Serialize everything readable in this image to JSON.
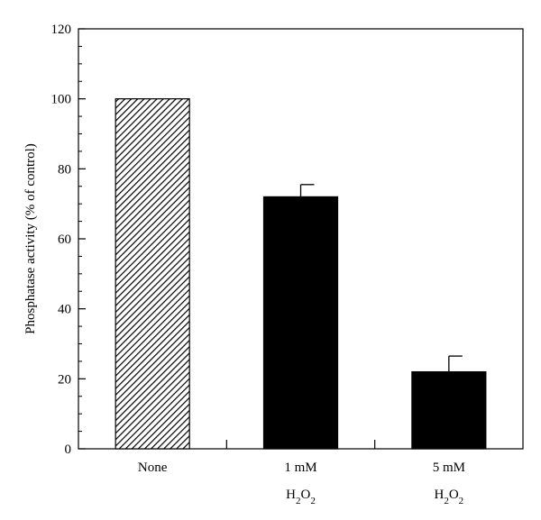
{
  "chart_data": {
    "type": "bar",
    "title": "",
    "xlabel": "",
    "ylabel": "Phosphatase activity (% of control)",
    "ylim": [
      0,
      120
    ],
    "yticks": [
      0,
      20,
      40,
      60,
      80,
      100,
      120
    ],
    "grid": false,
    "legend": "none",
    "categories": [
      {
        "line1": "None",
        "line2": ""
      },
      {
        "line1": "1 mM",
        "line2": "H2O2"
      },
      {
        "line1": "5 mM",
        "line2": "H2O2"
      }
    ],
    "values": [
      100,
      72,
      22
    ],
    "errors": [
      0,
      3.5,
      4.5
    ],
    "bar_styles": [
      "hatched",
      "solid",
      "solid"
    ],
    "bar_color": "#000000"
  }
}
